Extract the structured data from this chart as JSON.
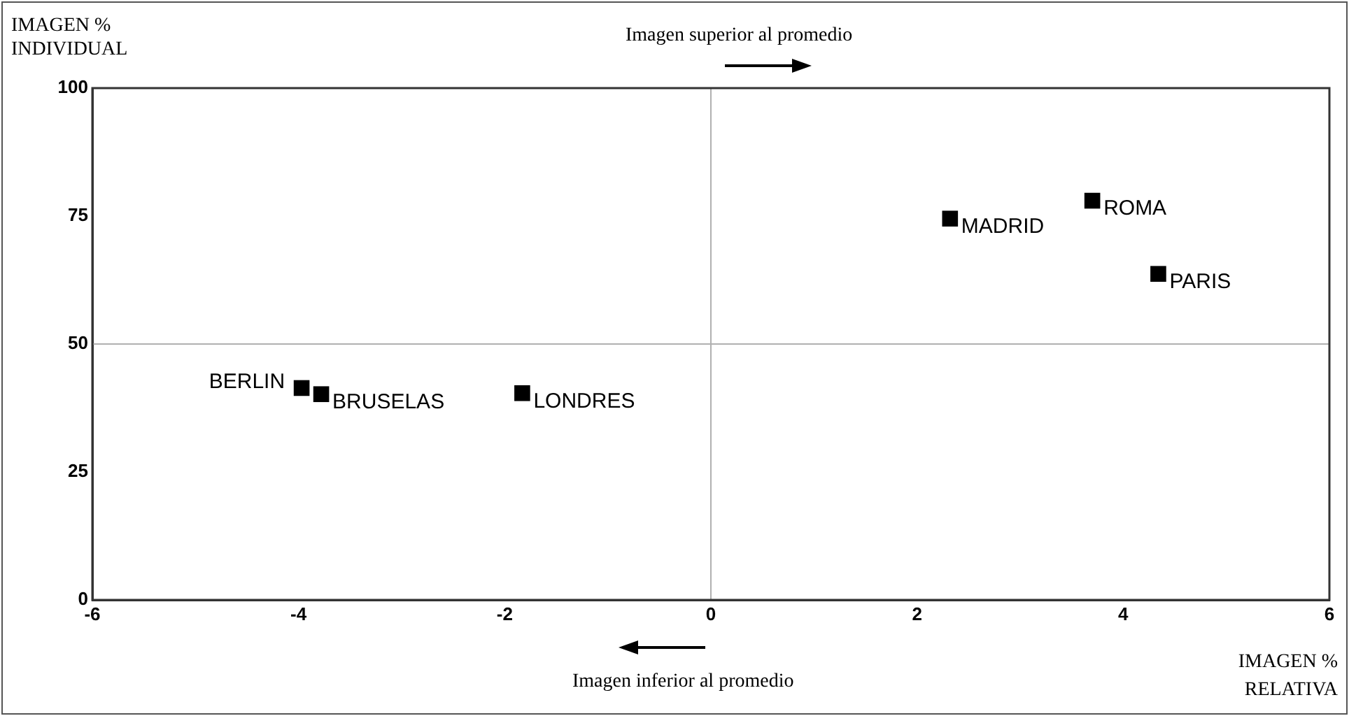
{
  "chart_data": {
    "type": "scatter",
    "xlabel": "IMAGEN % RELATIVA",
    "ylabel": "IMAGEN % INDIVIDUAL",
    "annotations": [
      "Imagen superior al promedio",
      "Imagen inferior al promedio"
    ],
    "series": [
      {
        "name": "BERLIN",
        "color": "#000000",
        "x": [
          -3.97
        ],
        "values": [
          41.4
        ]
      },
      {
        "name": "BRUSELAS",
        "color": "#000000",
        "x": [
          -3.78
        ],
        "values": [
          40.2
        ]
      },
      {
        "name": "LONDRES",
        "color": "#000000",
        "x": [
          -1.83
        ],
        "values": [
          40.4
        ]
      },
      {
        "name": "MADRID",
        "color": "#000000",
        "x": [
          2.32
        ],
        "values": [
          74.5
        ]
      },
      {
        "name": "ROMA",
        "color": "#000000",
        "x": [
          3.7
        ],
        "values": [
          78.0
        ]
      },
      {
        "name": "PARIS",
        "color": "#000000",
        "x": [
          4.34
        ],
        "values": [
          63.7
        ]
      }
    ],
    "xlim": [
      -6,
      6
    ],
    "xticks": [
      -6,
      -4,
      -2,
      0,
      2,
      4,
      6
    ],
    "ylim": [
      0,
      100
    ],
    "yticks": [
      0,
      25,
      50,
      75,
      100
    ],
    "ref_lines": [
      {
        "axis": "x",
        "value": 0,
        "color": "#b0b0b0"
      },
      {
        "axis": "y",
        "value": 50,
        "color": "#b0b0b0"
      }
    ],
    "grid": false,
    "legend": false,
    "marker": "square"
  }
}
